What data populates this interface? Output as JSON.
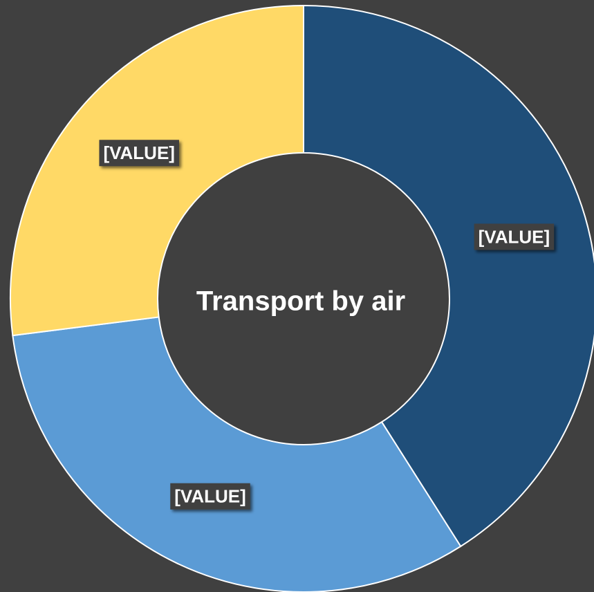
{
  "chart_data": {
    "type": "donut",
    "title": "Transport by air",
    "values": [
      41,
      32,
      27
    ],
    "value_labels": [
      "[VALUE]",
      "[VALUE]",
      "[VALUE]"
    ],
    "colors": [
      "#1f4e79",
      "#5b9bd5",
      "#ffd966"
    ]
  }
}
